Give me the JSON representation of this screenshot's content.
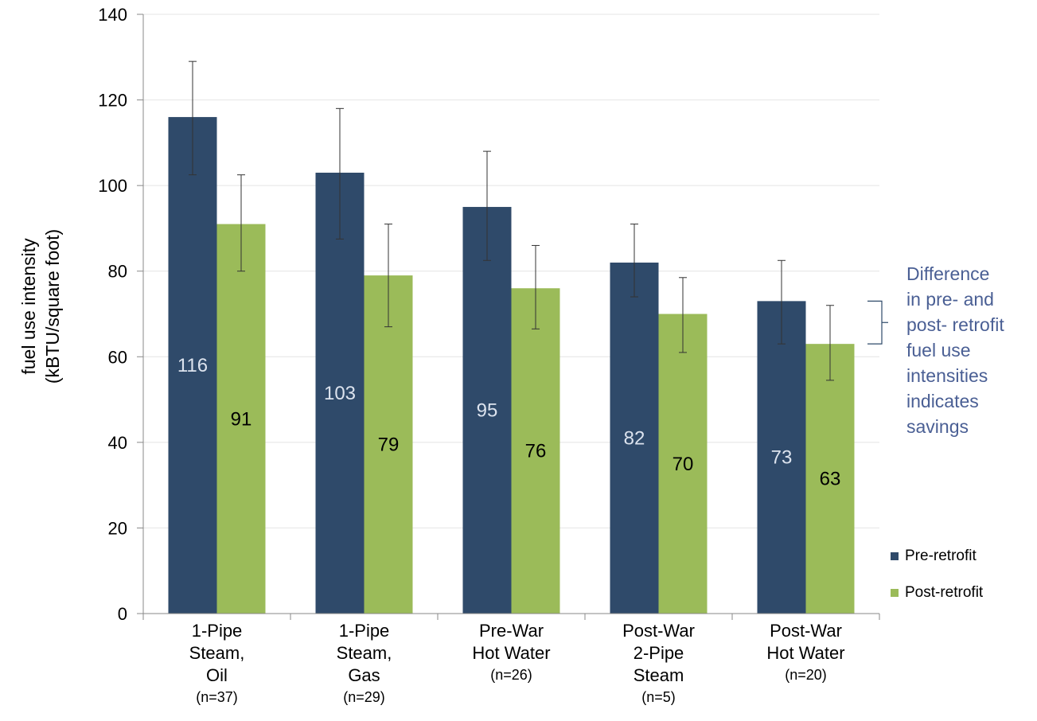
{
  "chart_data": {
    "type": "bar",
    "ylabel": [
      "fuel use intensity",
      "(kBTU/square foot)"
    ],
    "ylim": [
      0,
      140
    ],
    "yticks": [
      0,
      20,
      40,
      60,
      80,
      100,
      120,
      140
    ],
    "grid": true,
    "legend_position": "right",
    "categories": [
      {
        "lines": [
          "1-Pipe",
          "Steam,",
          "Oil"
        ],
        "n": "(n=37)"
      },
      {
        "lines": [
          "1-Pipe",
          "Steam,",
          "Gas"
        ],
        "n": "(n=29)"
      },
      {
        "lines": [
          "Pre-War",
          "Hot Water"
        ],
        "n": "(n=26)"
      },
      {
        "lines": [
          "Post-War",
          "2-Pipe",
          "Steam"
        ],
        "n": "(n=5)"
      },
      {
        "lines": [
          "Post-War",
          "Hot Water"
        ],
        "n": "(n=20)"
      }
    ],
    "series": [
      {
        "name": "Pre-retrofit",
        "color": "#2f4a6a",
        "label_color": "#dce3ee",
        "values": [
          116,
          103,
          95,
          82,
          73
        ],
        "labels": [
          "116",
          "103",
          "95",
          "82",
          "73"
        ],
        "error_low": [
          102.5,
          87.5,
          82.5,
          74,
          63
        ],
        "error_high": [
          129,
          118,
          108,
          91,
          82.5
        ]
      },
      {
        "name": "Post-retrofit",
        "color": "#9bbb59",
        "label_color": "#000000",
        "values": [
          91,
          79,
          76,
          70,
          63
        ],
        "labels": [
          "91",
          "79",
          "76",
          "70",
          "63"
        ],
        "error_low": [
          80,
          67,
          66.5,
          61,
          54.5
        ],
        "error_high": [
          102.5,
          91,
          86,
          78.5,
          72
        ]
      }
    ],
    "annotation": {
      "lines": [
        "Difference",
        "in pre- and",
        "post- retrofit",
        "fuel use",
        "intensities",
        "indicates",
        "savings"
      ],
      "color": "#4a5f94"
    }
  }
}
